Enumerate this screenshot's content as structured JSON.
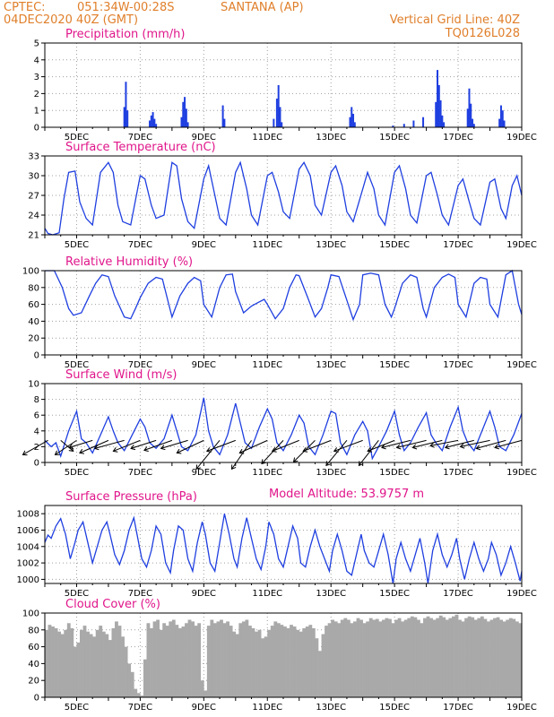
{
  "header": {
    "source": "CPTEC:",
    "location_coords": "051:34W-00:28S",
    "location_name": "SANTANA (AP)",
    "run_date": "04DEC2020 40Z (GMT)",
    "grid_line": "Vertical Grid Line: 40Z",
    "model_code": "TQ0126L028",
    "model_altitude": "Model Altitude: 53.9757 m"
  },
  "colors": {
    "header": "#e07f2a",
    "panel_title": "#e0168b",
    "series": "#1f3fe0",
    "cloud": "#a9a9a9"
  },
  "x_axis": {
    "start_day": 4.0,
    "end_day": 19.0,
    "tick_days": [
      5,
      7,
      9,
      11,
      13,
      15,
      17,
      19
    ],
    "tick_labels": [
      "5DEC",
      "7DEC",
      "9DEC",
      "11DEC",
      "13DEC",
      "15DEC",
      "17DEC",
      "19DEC"
    ]
  },
  "chart_data": [
    {
      "id": "precip",
      "type": "bar",
      "title": "Precipitation (mm/h)",
      "ylim": [
        0,
        5
      ],
      "yticks": [
        0,
        1,
        2,
        3,
        4,
        5
      ],
      "x": [
        6.5,
        6.55,
        6.6,
        7.3,
        7.35,
        7.4,
        7.45,
        7.5,
        8.3,
        8.35,
        8.4,
        8.45,
        8.5,
        9.6,
        9.65,
        11.2,
        11.3,
        11.35,
        11.4,
        11.45,
        13.6,
        13.65,
        13.7,
        13.75,
        14.95,
        15.3,
        15.6,
        15.9,
        16.3,
        16.35,
        16.4,
        16.45,
        16.5,
        16.55,
        17.3,
        17.35,
        17.4,
        17.45,
        17.5,
        18.3,
        18.35,
        18.4,
        18.45
      ],
      "values": [
        1.2,
        2.7,
        1.0,
        0.4,
        0.7,
        0.9,
        0.5,
        0.2,
        0.6,
        1.5,
        1.8,
        1.1,
        0.3,
        1.3,
        0.5,
        0.5,
        1.7,
        2.5,
        1.2,
        0.3,
        0.6,
        1.2,
        0.8,
        0.3,
        0.1,
        0.2,
        0.4,
        0.6,
        1.5,
        3.4,
        2.5,
        1.6,
        0.7,
        0.3,
        1.1,
        2.3,
        1.4,
        0.5,
        0.2,
        0.5,
        1.3,
        1.0,
        0.4
      ]
    },
    {
      "id": "temp",
      "type": "line",
      "title": "Surface Temperature (nC)",
      "ylim": [
        21,
        33
      ],
      "yticks": [
        21,
        24,
        27,
        30,
        33
      ],
      "x": [
        4.0,
        4.1,
        4.25,
        4.45,
        4.6,
        4.75,
        4.95,
        5.1,
        5.3,
        5.5,
        5.75,
        6.0,
        6.15,
        6.3,
        6.45,
        6.7,
        7.0,
        7.15,
        7.35,
        7.5,
        7.75,
        8.0,
        8.15,
        8.3,
        8.5,
        8.7,
        9.0,
        9.15,
        9.35,
        9.5,
        9.7,
        10.0,
        10.15,
        10.35,
        10.5,
        10.7,
        11.0,
        11.15,
        11.35,
        11.5,
        11.7,
        12.0,
        12.15,
        12.35,
        12.5,
        12.7,
        13.0,
        13.15,
        13.35,
        13.5,
        13.7,
        14.0,
        14.15,
        14.35,
        14.5,
        14.7,
        15.0,
        15.15,
        15.35,
        15.5,
        15.7,
        16.0,
        16.15,
        16.35,
        16.5,
        16.7,
        17.0,
        17.15,
        17.35,
        17.5,
        17.7,
        18.0,
        18.15,
        18.35,
        18.5,
        18.7,
        18.85,
        19.0
      ],
      "values": [
        22.0,
        21.2,
        21.0,
        21.3,
        26.5,
        30.5,
        30.7,
        26.0,
        23.5,
        22.5,
        30.5,
        32.0,
        30.5,
        25.5,
        23.0,
        22.5,
        30.0,
        29.5,
        25.5,
        23.5,
        24.0,
        32.0,
        31.5,
        26.5,
        23.0,
        22.0,
        29.5,
        31.5,
        27.0,
        23.5,
        22.5,
        30.5,
        32.0,
        28.0,
        24.0,
        22.5,
        30.0,
        30.5,
        27.5,
        24.5,
        23.5,
        31.0,
        32.0,
        30.0,
        25.5,
        24.0,
        30.5,
        31.5,
        28.5,
        24.5,
        23.0,
        28.0,
        30.5,
        28.0,
        24.0,
        22.5,
        30.5,
        31.5,
        28.0,
        24.0,
        22.8,
        30.0,
        30.5,
        27.0,
        24.0,
        22.5,
        28.5,
        29.5,
        26.0,
        23.5,
        22.5,
        29.0,
        29.5,
        25.0,
        23.5,
        28.5,
        30.0,
        27.0
      ]
    },
    {
      "id": "rh",
      "type": "line",
      "title": "Relative Humidity (%)",
      "ylim": [
        0,
        100
      ],
      "yticks": [
        0,
        20,
        40,
        60,
        80,
        100
      ],
      "x": [
        4.0,
        4.3,
        4.55,
        4.75,
        4.9,
        5.15,
        5.4,
        5.6,
        5.8,
        6.0,
        6.2,
        6.5,
        6.7,
        6.85,
        7.0,
        7.25,
        7.5,
        7.7,
        7.9,
        8.0,
        8.25,
        8.5,
        8.7,
        8.9,
        9.0,
        9.25,
        9.5,
        9.7,
        9.9,
        10.0,
        10.25,
        10.5,
        10.7,
        10.9,
        11.0,
        11.25,
        11.5,
        11.7,
        11.9,
        12.0,
        12.25,
        12.5,
        12.7,
        12.9,
        13.0,
        13.25,
        13.5,
        13.7,
        13.9,
        14.0,
        14.25,
        14.5,
        14.7,
        14.9,
        15.0,
        15.25,
        15.5,
        15.7,
        15.9,
        16.0,
        16.25,
        16.5,
        16.7,
        16.9,
        17.0,
        17.25,
        17.5,
        17.7,
        17.9,
        18.0,
        18.25,
        18.5,
        18.7,
        18.9,
        19.0
      ],
      "values": [
        100,
        100,
        80,
        55,
        47,
        50,
        70,
        85,
        95,
        93,
        70,
        45,
        43,
        55,
        68,
        85,
        92,
        90,
        60,
        45,
        70,
        85,
        92,
        88,
        60,
        45,
        80,
        95,
        96,
        75,
        50,
        58,
        62,
        66,
        60,
        43,
        55,
        80,
        95,
        94,
        70,
        45,
        55,
        80,
        95,
        93,
        65,
        42,
        60,
        95,
        97,
        95,
        60,
        45,
        55,
        85,
        95,
        92,
        55,
        45,
        80,
        92,
        96,
        92,
        60,
        45,
        85,
        92,
        90,
        60,
        45,
        95,
        100,
        60,
        48
      ]
    },
    {
      "id": "wind",
      "type": "line",
      "title": "Surface Wind (m/s)",
      "ylim": [
        0,
        10
      ],
      "yticks": [
        0,
        2,
        4,
        6,
        8,
        10
      ],
      "x": [
        4.0,
        4.2,
        4.35,
        4.5,
        4.75,
        5.0,
        5.15,
        5.3,
        5.5,
        5.75,
        6.0,
        6.15,
        6.3,
        6.5,
        6.75,
        7.0,
        7.15,
        7.3,
        7.5,
        7.75,
        8.0,
        8.15,
        8.3,
        8.5,
        8.75,
        9.0,
        9.15,
        9.3,
        9.5,
        9.75,
        10.0,
        10.15,
        10.3,
        10.5,
        10.75,
        11.0,
        11.15,
        11.3,
        11.5,
        11.75,
        12.0,
        12.15,
        12.3,
        12.5,
        12.75,
        13.0,
        13.15,
        13.3,
        13.5,
        13.75,
        14.0,
        14.15,
        14.3,
        14.5,
        14.75,
        15.0,
        15.15,
        15.3,
        15.5,
        15.75,
        16.0,
        16.15,
        16.3,
        16.5,
        16.75,
        17.0,
        17.15,
        17.3,
        17.5,
        17.75,
        18.0,
        18.15,
        18.3,
        18.5,
        18.75,
        19.0
      ],
      "values": [
        2.8,
        2.0,
        2.5,
        0.8,
        4.0,
        6.5,
        3.0,
        2.5,
        1.2,
        3.5,
        5.8,
        4.0,
        2.5,
        1.5,
        3.5,
        5.5,
        4.5,
        2.5,
        1.8,
        3.0,
        6.0,
        4.0,
        2.0,
        1.5,
        3.5,
        8.2,
        4.0,
        2.0,
        1.0,
        3.5,
        7.5,
        5.0,
        2.5,
        1.8,
        4.5,
        6.8,
        5.5,
        2.5,
        1.5,
        3.5,
        6.0,
        5.0,
        2.0,
        1.0,
        3.5,
        6.5,
        6.2,
        2.5,
        1.0,
        3.5,
        5.2,
        4.0,
        0.5,
        2.0,
        4.0,
        6.5,
        3.5,
        1.5,
        2.5,
        4.5,
        6.3,
        3.5,
        2.5,
        1.5,
        4.5,
        7.0,
        4.0,
        2.5,
        1.5,
        4.0,
        6.5,
        4.5,
        2.0,
        1.5,
        3.5,
        6.2
      ],
      "barbs_x": [
        4.1,
        4.5,
        5.0,
        5.5,
        6.0,
        6.5,
        7.0,
        7.5,
        8.0,
        8.5,
        9.0,
        9.5,
        10.0,
        10.5,
        11.0,
        11.5,
        12.0,
        12.5,
        13.0,
        13.5,
        14.0,
        14.5,
        15.0,
        15.5,
        16.0,
        16.5,
        17.0,
        17.5,
        18.0,
        18.5,
        19.0
      ],
      "barbs_dx": [
        -2.8,
        1.4,
        -2.4,
        -2.6,
        -3.2,
        -3.3,
        -3.0,
        -2.8,
        -3.1,
        -3.0,
        -3.0,
        -2.6,
        -3.2,
        -2.2,
        -3.1,
        -2.4,
        -3.0,
        -2.4,
        -3.1,
        -2.3,
        -3.2,
        -2.2,
        -3.0,
        -3.2,
        -3.3,
        -3.3,
        -3.1,
        -3.2,
        -3.3,
        -3.3,
        -3.0
      ],
      "barbs_dy": [
        -1.6,
        -1.2,
        -1.6,
        -0.8,
        -1.4,
        -0.9,
        -1.2,
        -0.9,
        -1.1,
        -0.9,
        -1.4,
        -3.2,
        -1.2,
        -3.2,
        -1.4,
        -2.6,
        -1.2,
        -2.4,
        -1.2,
        -2.8,
        -1.2,
        -2.8,
        -1.2,
        -0.8,
        -0.8,
        -0.8,
        -0.6,
        -0.8,
        -0.7,
        -0.9,
        -0.8
      ]
    },
    {
      "id": "pres",
      "type": "line",
      "title": "Surface Pressure (hPa)",
      "ylim": [
        999.5,
        1009
      ],
      "yticks": [
        1000,
        1002,
        1004,
        1006,
        1008
      ],
      "x": [
        4.0,
        4.1,
        4.2,
        4.35,
        4.5,
        4.65,
        4.8,
        4.95,
        5.05,
        5.2,
        5.35,
        5.5,
        5.65,
        5.8,
        5.95,
        6.05,
        6.2,
        6.35,
        6.5,
        6.65,
        6.8,
        6.95,
        7.05,
        7.2,
        7.35,
        7.5,
        7.65,
        7.8,
        7.95,
        8.05,
        8.2,
        8.35,
        8.5,
        8.65,
        8.8,
        8.95,
        9.05,
        9.2,
        9.35,
        9.5,
        9.65,
        9.8,
        9.95,
        10.05,
        10.2,
        10.35,
        10.5,
        10.65,
        10.8,
        10.95,
        11.05,
        11.2,
        11.35,
        11.5,
        11.65,
        11.8,
        11.95,
        12.05,
        12.2,
        12.35,
        12.5,
        12.65,
        12.8,
        12.95,
        13.05,
        13.2,
        13.35,
        13.5,
        13.65,
        13.8,
        13.95,
        14.05,
        14.2,
        14.35,
        14.5,
        14.65,
        14.8,
        14.95,
        15.05,
        15.2,
        15.35,
        15.5,
        15.65,
        15.8,
        15.95,
        16.05,
        16.2,
        16.35,
        16.5,
        16.65,
        16.8,
        16.95,
        17.05,
        17.2,
        17.35,
        17.5,
        17.65,
        17.8,
        17.95,
        18.05,
        18.2,
        18.35,
        18.5,
        18.65,
        18.8,
        18.95,
        19.0
      ],
      "values": [
        1004.5,
        1005.4,
        1005.0,
        1006.5,
        1007.4,
        1005.5,
        1002.5,
        1004.5,
        1006.0,
        1007.0,
        1004.5,
        1002.0,
        1004.0,
        1006.0,
        1007.0,
        1005.5,
        1003.0,
        1001.8,
        1003.5,
        1006.0,
        1007.5,
        1004.5,
        1002.5,
        1001.5,
        1003.5,
        1006.5,
        1005.5,
        1002.0,
        1000.8,
        1003.5,
        1006.5,
        1006.0,
        1002.5,
        1001.0,
        1004.5,
        1007.0,
        1005.5,
        1002.0,
        1001.0,
        1004.5,
        1008.0,
        1005.5,
        1002.5,
        1001.5,
        1005.0,
        1007.5,
        1005.0,
        1002.5,
        1001.2,
        1004.0,
        1007.0,
        1005.5,
        1002.5,
        1001.5,
        1004.0,
        1006.5,
        1005.0,
        1002.0,
        1001.5,
        1004.0,
        1006.0,
        1004.0,
        1002.5,
        1001.0,
        1003.5,
        1005.5,
        1003.5,
        1001.0,
        1000.5,
        1003.0,
        1005.5,
        1003.5,
        1002.0,
        1001.5,
        1003.5,
        1005.5,
        1003.0,
        999.5,
        1002.5,
        1004.5,
        1002.5,
        1001.0,
        1003.0,
        1005.0,
        1002.0,
        999.5,
        1003.5,
        1005.5,
        1003.0,
        1001.5,
        1003.0,
        1005.0,
        1002.5,
        1000.0,
        1002.5,
        1004.5,
        1002.5,
        1001.0,
        1002.5,
        1004.5,
        1003.0,
        1000.5,
        1002.0,
        1004.0,
        1002.0,
        999.8,
        1001.0
      ]
    },
    {
      "id": "cloud",
      "type": "area",
      "title": "Cloud Cover (%)",
      "ylim": [
        0,
        100
      ],
      "yticks": [
        0,
        20,
        40,
        60,
        80,
        100
      ],
      "x": [
        4.0,
        4.1,
        4.2,
        4.3,
        4.4,
        4.5,
        4.6,
        4.7,
        4.8,
        4.9,
        5.0,
        5.1,
        5.2,
        5.3,
        5.4,
        5.5,
        5.6,
        5.7,
        5.8,
        5.9,
        6.0,
        6.1,
        6.2,
        6.3,
        6.4,
        6.5,
        6.6,
        6.7,
        6.8,
        6.9,
        7.0,
        7.1,
        7.2,
        7.3,
        7.4,
        7.5,
        7.6,
        7.7,
        7.8,
        7.9,
        8.0,
        8.1,
        8.2,
        8.3,
        8.4,
        8.5,
        8.6,
        8.7,
        8.8,
        8.9,
        9.0,
        9.1,
        9.2,
        9.3,
        9.4,
        9.5,
        9.6,
        9.7,
        9.8,
        9.9,
        10.0,
        10.1,
        10.2,
        10.3,
        10.4,
        10.5,
        10.6,
        10.7,
        10.8,
        10.9,
        11.0,
        11.1,
        11.2,
        11.3,
        11.4,
        11.5,
        11.6,
        11.7,
        11.8,
        11.9,
        12.0,
        12.1,
        12.2,
        12.3,
        12.4,
        12.5,
        12.6,
        12.7,
        12.8,
        12.9,
        13.0,
        13.1,
        13.2,
        13.3,
        13.4,
        13.5,
        13.6,
        13.7,
        13.8,
        13.9,
        14.0,
        14.1,
        14.2,
        14.3,
        14.4,
        14.5,
        14.6,
        14.7,
        14.8,
        14.9,
        15.0,
        15.1,
        15.2,
        15.3,
        15.4,
        15.5,
        15.6,
        15.7,
        15.8,
        15.9,
        16.0,
        16.1,
        16.2,
        16.3,
        16.4,
        16.5,
        16.6,
        16.7,
        16.8,
        16.9,
        17.0,
        17.1,
        17.2,
        17.3,
        17.4,
        17.5,
        17.6,
        17.7,
        17.8,
        17.9,
        18.0,
        18.1,
        18.2,
        18.3,
        18.4,
        18.5,
        18.6,
        18.7,
        18.8,
        18.9,
        19.0
      ],
      "values": [
        80,
        86,
        84,
        82,
        78,
        75,
        80,
        88,
        82,
        60,
        65,
        80,
        85,
        78,
        75,
        72,
        80,
        85,
        78,
        75,
        68,
        82,
        90,
        85,
        72,
        60,
        40,
        30,
        10,
        5,
        2,
        45,
        88,
        82,
        90,
        92,
        80,
        88,
        85,
        90,
        92,
        86,
        82,
        84,
        88,
        92,
        90,
        85,
        88,
        20,
        8,
        85,
        92,
        88,
        90,
        92,
        88,
        90,
        85,
        78,
        75,
        88,
        90,
        92,
        85,
        82,
        78,
        80,
        70,
        72,
        80,
        85,
        90,
        88,
        86,
        84,
        82,
        86,
        84,
        80,
        78,
        82,
        84,
        86,
        82,
        70,
        55,
        75,
        85,
        88,
        92,
        90,
        88,
        92,
        94,
        92,
        88,
        90,
        94,
        92,
        88,
        90,
        94,
        92,
        93,
        90,
        92,
        94,
        93,
        88,
        92,
        94,
        90,
        92,
        94,
        96,
        95,
        92,
        88,
        94,
        96,
        94,
        92,
        94,
        97,
        95,
        92,
        94,
        96,
        98,
        92,
        90,
        94,
        96,
        95,
        92,
        94,
        96,
        93,
        90,
        92,
        94,
        95,
        92,
        90,
        92,
        94,
        93,
        90,
        88,
        84
      ]
    }
  ]
}
